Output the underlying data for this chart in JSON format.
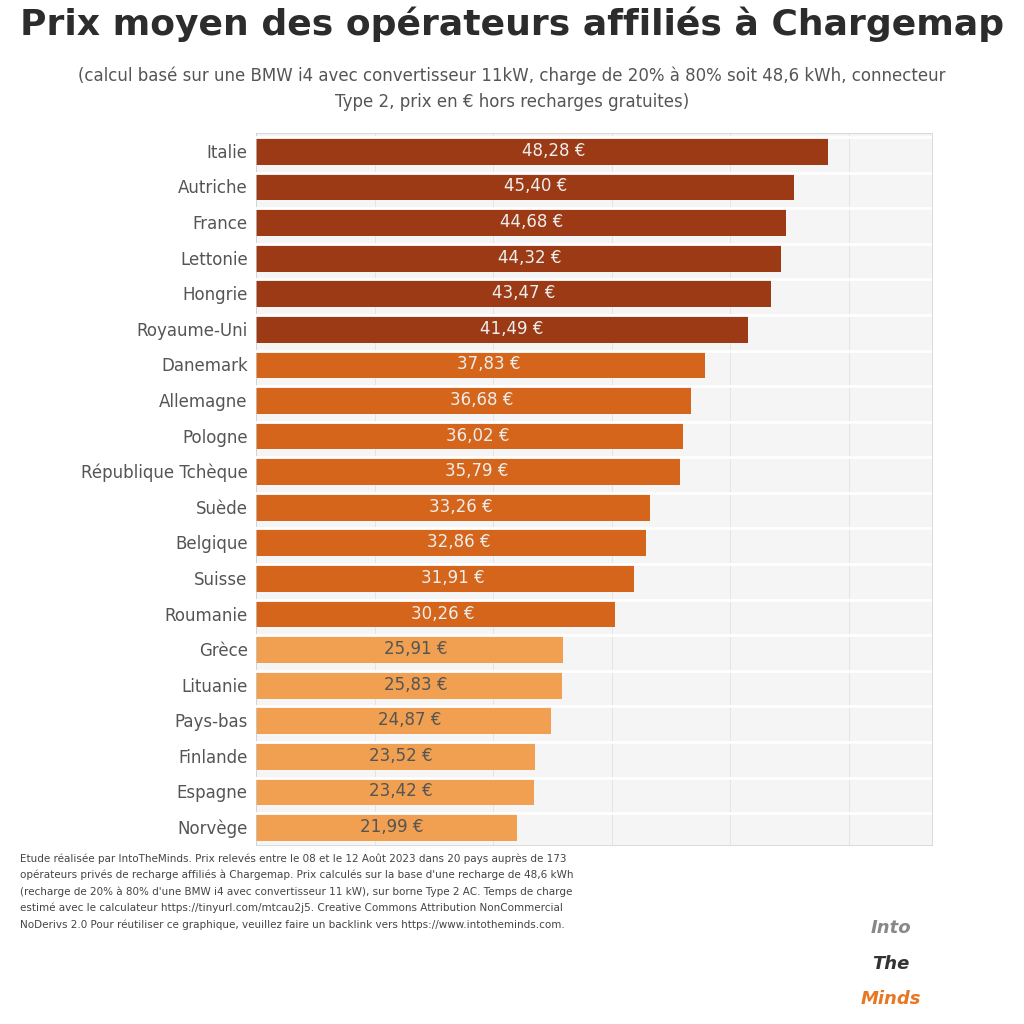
{
  "title": "Prix moyen des opérateurs affiliés à Chargemap",
  "subtitle": "(calcul basé sur une BMW i4 avec convertisseur 11kW, charge de 20% à 80% soit 48,6 kWh, connecteur\nType 2, prix en € hors recharges gratuites)",
  "countries": [
    "Italie",
    "Autriche",
    "France",
    "Lettonie",
    "Hongrie",
    "Royaume-Uni",
    "Danemark",
    "Allemagne",
    "Pologne",
    "République Tchèque",
    "Suède",
    "Belgique",
    "Suisse",
    "Roumanie",
    "Grèce",
    "Lituanie",
    "Pays-bas",
    "Finlande",
    "Espagne",
    "Norvège"
  ],
  "values": [
    48.28,
    45.4,
    44.68,
    44.32,
    43.47,
    41.49,
    37.83,
    36.68,
    36.02,
    35.79,
    33.26,
    32.86,
    31.91,
    30.26,
    25.91,
    25.83,
    24.87,
    23.52,
    23.42,
    21.99
  ],
  "bar_colors": [
    "#9B3A15",
    "#9B3A15",
    "#9B3A15",
    "#9B3A15",
    "#9B3A15",
    "#9B3A15",
    "#D4651A",
    "#D4651A",
    "#D4651A",
    "#D4651A",
    "#D4651A",
    "#D4651A",
    "#D4651A",
    "#D4651A",
    "#F0A050",
    "#F0A050",
    "#F0A050",
    "#F0A050",
    "#F0A050",
    "#F0A050"
  ],
  "value_colors_dark": [
    true,
    true,
    true,
    true,
    true,
    true,
    true,
    true,
    true,
    true,
    true,
    true,
    true,
    true,
    false,
    false,
    false,
    false,
    false,
    false
  ],
  "background_color": "#FFFFFF",
  "chart_bg_color": "#F5F5F5",
  "title_fontsize": 26,
  "subtitle_fontsize": 12,
  "label_fontsize": 12,
  "value_fontsize": 12,
  "footer_text": "Etude réalisée par IntoTheMinds. Prix relevés entre le 08 et le 12 Août 2023 dans 20 pays auprès de 173\nopérateurs privés de recharge affiliés à Chargemap. Prix calculés sur la base d'une recharge de 48,6 kWh\n(recharge de 20% à 80% d'une BMW i4 avec convertisseur 11 kW), sur borne Type 2 AC. Temps de charge\nestimé avec le calculateur https://tinyurl.com/mtcau2j5. Creative Commons Attribution NonCommercial\nNoDerivs 2.0 Pour réutiliser ce graphique, veuillez faire un backlink vers https://www.intotheminds.com.",
  "xlim": [
    0,
    57
  ],
  "title_color": "#2C2C2C",
  "subtitle_color": "#555555",
  "country_label_color": "#555555",
  "value_label_color_light": "#FFFFFF",
  "value_label_color_dark": "#555555"
}
